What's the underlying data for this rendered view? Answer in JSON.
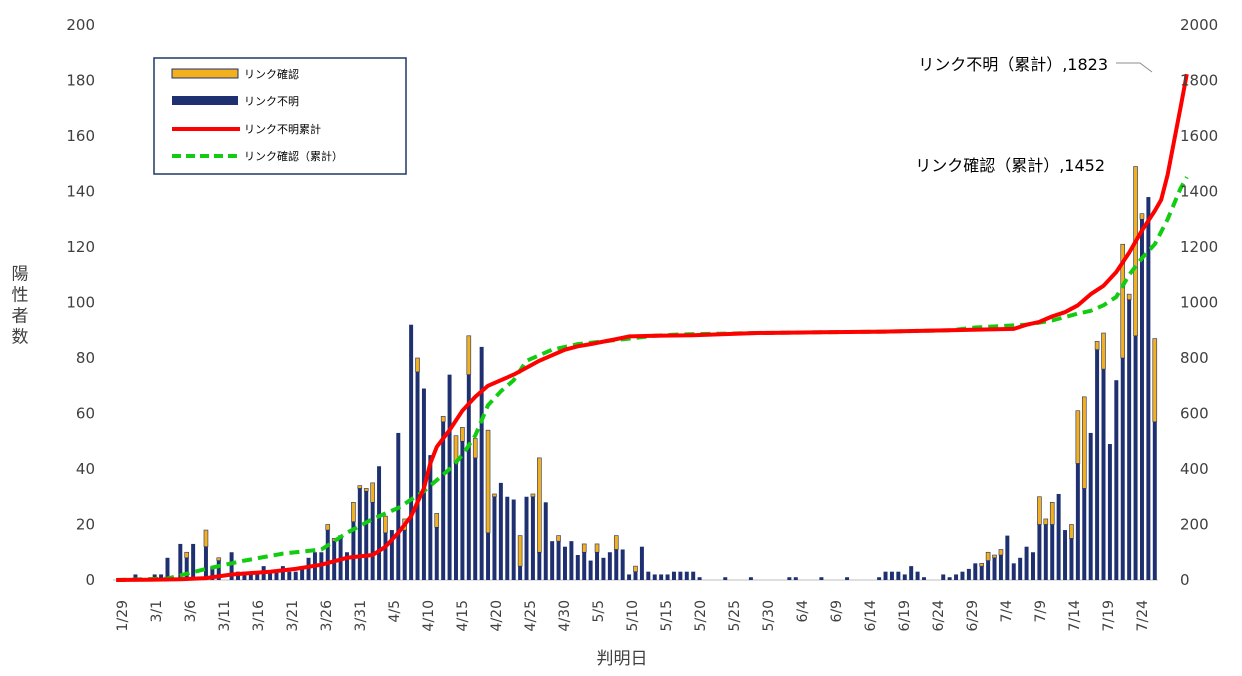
{
  "chart_data": {
    "type": "bar",
    "ylabel": "陽性者数",
    "xlabel": "判明日",
    "ylim_left": [
      0,
      200
    ],
    "ylim_right": [
      0,
      2000
    ],
    "left_ticks": [
      "0",
      "20",
      "40",
      "60",
      "80",
      "100",
      "120",
      "140",
      "160",
      "180",
      "200"
    ],
    "right_ticks": [
      "0",
      "200",
      "400",
      "600",
      "800",
      "1000",
      "1200",
      "1400",
      "1600",
      "1800",
      "2000"
    ],
    "x_tick_labels": [
      "1/29",
      "3/1",
      "3/6",
      "3/11",
      "3/16",
      "3/21",
      "3/26",
      "3/31",
      "4/5",
      "4/10",
      "4/15",
      "4/20",
      "4/25",
      "4/30",
      "5/5",
      "5/10",
      "5/15",
      "5/20",
      "5/25",
      "5/30",
      "6/4",
      "6/9",
      "6/14",
      "6/19",
      "6/24",
      "6/29",
      "7/4",
      "7/9",
      "7/14",
      "7/19",
      "7/24"
    ],
    "legend": [
      {
        "label": "リンク確認",
        "color": "#F2B01E",
        "kind": "bar"
      },
      {
        "label": "リンク不明",
        "color": "#1F3070",
        "kind": "bar"
      },
      {
        "label": "リンク不明累計",
        "color": "#FF0000",
        "kind": "line"
      },
      {
        "label": "リンク確認（累計）",
        "color": "#11CC11",
        "kind": "dashed"
      }
    ],
    "annotations": [
      {
        "text": "リンク不明（累計）,1823",
        "series": "unlinked_cumulative"
      },
      {
        "text": "リンク確認（累計）,1452",
        "series": "linked_cumulative"
      }
    ],
    "bars": {
      "total": [
        0,
        0,
        0,
        2,
        0,
        0,
        2,
        2,
        8,
        0,
        13,
        10,
        13,
        0,
        18,
        5,
        8,
        0,
        10,
        3,
        3,
        3,
        3,
        5,
        3,
        3,
        5,
        3,
        3,
        5,
        8,
        10,
        10,
        20,
        15,
        16,
        10,
        28,
        34,
        33,
        35,
        41,
        23,
        18,
        53,
        22,
        92,
        80,
        69,
        45,
        24,
        59,
        74,
        52,
        55,
        88,
        51,
        84,
        54,
        31,
        35,
        30,
        29,
        16,
        30,
        31,
        44,
        28,
        14,
        16,
        12,
        14,
        9,
        13,
        7,
        13,
        8,
        10,
        16,
        11,
        2,
        5,
        12,
        3,
        2,
        2,
        2,
        3,
        3,
        3,
        3,
        1,
        0,
        0,
        0,
        1,
        0,
        0,
        0,
        1,
        0,
        0,
        0,
        0,
        0,
        1,
        1,
        0,
        0,
        0,
        1,
        0,
        0,
        0,
        1,
        0,
        0,
        0,
        0,
        1,
        3,
        3,
        3,
        2,
        5,
        3,
        1,
        0,
        0,
        2,
        1,
        2,
        3,
        4,
        6,
        6,
        10,
        9,
        11,
        16,
        6,
        8,
        12,
        10,
        30,
        22,
        28,
        31,
        18,
        20,
        61,
        66,
        53,
        86,
        89,
        49,
        72,
        121,
        103,
        149,
        132,
        138,
        87
      ],
      "unlinked": [
        0,
        0,
        0,
        2,
        0,
        0,
        2,
        2,
        8,
        0,
        13,
        8,
        13,
        0,
        12,
        5,
        7,
        0,
        10,
        3,
        3,
        3,
        3,
        5,
        3,
        3,
        5,
        3,
        3,
        5,
        8,
        10,
        10,
        18,
        14,
        15,
        10,
        21,
        33,
        32,
        28,
        41,
        17,
        18,
        53,
        18,
        92,
        75,
        69,
        45,
        19,
        57,
        74,
        42,
        50,
        74,
        44,
        84,
        17,
        30,
        35,
        30,
        29,
        5,
        30,
        30,
        10,
        28,
        14,
        14,
        12,
        14,
        9,
        10,
        7,
        10,
        8,
        10,
        11,
        11,
        2,
        3,
        12,
        3,
        2,
        2,
        2,
        3,
        3,
        3,
        3,
        1,
        0,
        0,
        0,
        1,
        0,
        0,
        0,
        1,
        0,
        0,
        0,
        0,
        0,
        1,
        1,
        0,
        0,
        0,
        1,
        0,
        0,
        0,
        1,
        0,
        0,
        0,
        0,
        1,
        3,
        3,
        3,
        2,
        5,
        3,
        1,
        0,
        0,
        2,
        1,
        2,
        3,
        4,
        6,
        5,
        7,
        8,
        9,
        16,
        6,
        8,
        12,
        10,
        20,
        20,
        20,
        31,
        18,
        15,
        42,
        33,
        53,
        83,
        76,
        49,
        72,
        80,
        101,
        88,
        130,
        138,
        57
      ]
    },
    "unlinked_cumulative": [
      [
        0,
        0
      ],
      [
        5,
        1
      ],
      [
        10,
        3
      ],
      [
        14,
        7
      ],
      [
        18,
        20
      ],
      [
        24,
        30
      ],
      [
        28,
        40
      ],
      [
        32,
        55
      ],
      [
        36,
        80
      ],
      [
        40,
        90
      ],
      [
        42,
        120
      ],
      [
        44,
        170
      ],
      [
        46,
        230
      ],
      [
        48,
        330
      ],
      [
        49,
        420
      ],
      [
        50,
        480
      ],
      [
        52,
        540
      ],
      [
        54,
        610
      ],
      [
        56,
        660
      ],
      [
        58,
        700
      ],
      [
        60,
        720
      ],
      [
        62,
        740
      ],
      [
        64,
        765
      ],
      [
        66,
        790
      ],
      [
        68,
        810
      ],
      [
        70,
        830
      ],
      [
        72,
        842
      ],
      [
        74,
        850
      ],
      [
        78,
        868
      ],
      [
        80,
        878
      ],
      [
        84,
        880
      ],
      [
        90,
        882
      ],
      [
        100,
        890
      ],
      [
        110,
        893
      ],
      [
        120,
        895
      ],
      [
        130,
        900
      ],
      [
        140,
        905
      ],
      [
        142,
        920
      ],
      [
        144,
        930
      ],
      [
        146,
        950
      ],
      [
        148,
        965
      ],
      [
        150,
        990
      ],
      [
        152,
        1030
      ],
      [
        154,
        1060
      ],
      [
        156,
        1110
      ],
      [
        158,
        1180
      ],
      [
        160,
        1260
      ],
      [
        162,
        1330
      ],
      [
        163,
        1370
      ],
      [
        164,
        1460
      ],
      [
        165,
        1580
      ],
      [
        166,
        1700
      ],
      [
        167,
        1823
      ]
    ],
    "linked_cumulative": [
      [
        0,
        0
      ],
      [
        8,
        5
      ],
      [
        14,
        40
      ],
      [
        20,
        70
      ],
      [
        26,
        95
      ],
      [
        32,
        110
      ],
      [
        36,
        170
      ],
      [
        40,
        220
      ],
      [
        44,
        260
      ],
      [
        48,
        320
      ],
      [
        50,
        360
      ],
      [
        52,
        400
      ],
      [
        54,
        450
      ],
      [
        56,
        520
      ],
      [
        58,
        630
      ],
      [
        60,
        680
      ],
      [
        62,
        720
      ],
      [
        64,
        790
      ],
      [
        68,
        830
      ],
      [
        72,
        850
      ],
      [
        76,
        860
      ],
      [
        80,
        870
      ],
      [
        84,
        880
      ],
      [
        88,
        885
      ],
      [
        100,
        890
      ],
      [
        120,
        895
      ],
      [
        130,
        900
      ],
      [
        134,
        910
      ],
      [
        138,
        915
      ],
      [
        142,
        920
      ],
      [
        146,
        935
      ],
      [
        150,
        960
      ],
      [
        152,
        970
      ],
      [
        154,
        990
      ],
      [
        156,
        1020
      ],
      [
        158,
        1100
      ],
      [
        160,
        1160
      ],
      [
        162,
        1210
      ],
      [
        164,
        1300
      ],
      [
        166,
        1410
      ],
      [
        167,
        1452
      ]
    ]
  }
}
